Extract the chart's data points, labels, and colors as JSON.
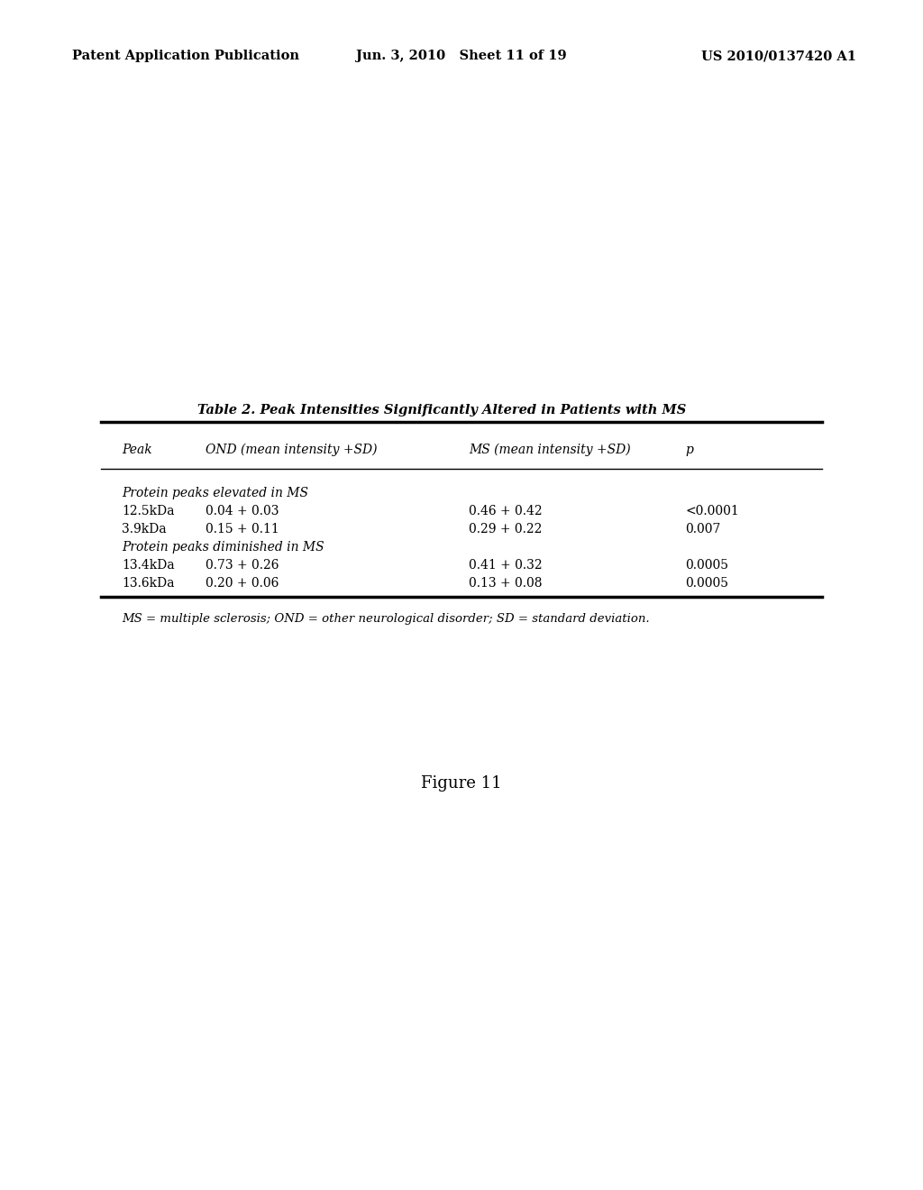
{
  "header_left": "Patent Application Publication",
  "header_mid": "Jun. 3, 2010   Sheet 11 of 19",
  "header_right": "US 2010/0137420 A1",
  "table_title": "Table 2. Peak Intensities Significantly Altered in Patients with MS",
  "col_headers": [
    "Peak",
    "OND (mean intensity +SD) MS (mean intensity +SD)",
    "p"
  ],
  "col_headers_split": [
    "Peak",
    "OND (mean intensity +SD)",
    "MS (mean intensity +SD)",
    "p"
  ],
  "section1_label": "Protein peaks elevated in MS",
  "section2_label": "Protein peaks diminished in MS",
  "rows": [
    [
      "12.5kDa",
      "0.04 + 0.03",
      "0.46 + 0.42",
      "<0.0001"
    ],
    [
      "3.9kDa",
      "0.15 + 0.11",
      "0.29 + 0.22",
      "0.007"
    ],
    [
      "13.4kDa",
      "0.73 + 0.26",
      "0.41 + 0.32",
      "0.0005"
    ],
    [
      "13.6kDa",
      "0.20 + 0.06",
      "0.13 + 0.08",
      "0.0005"
    ]
  ],
  "footnote": "MS = multiple sclerosis; OND = other neurological disorder; SD = standard deviation.",
  "figure_label": "Figure 11",
  "bg_color": "#ffffff",
  "text_color": "#000000",
  "header_fontsize": 10.5,
  "title_fontsize": 10.5,
  "body_fontsize": 10,
  "footnote_fontsize": 9.5,
  "figure_fontsize": 13
}
